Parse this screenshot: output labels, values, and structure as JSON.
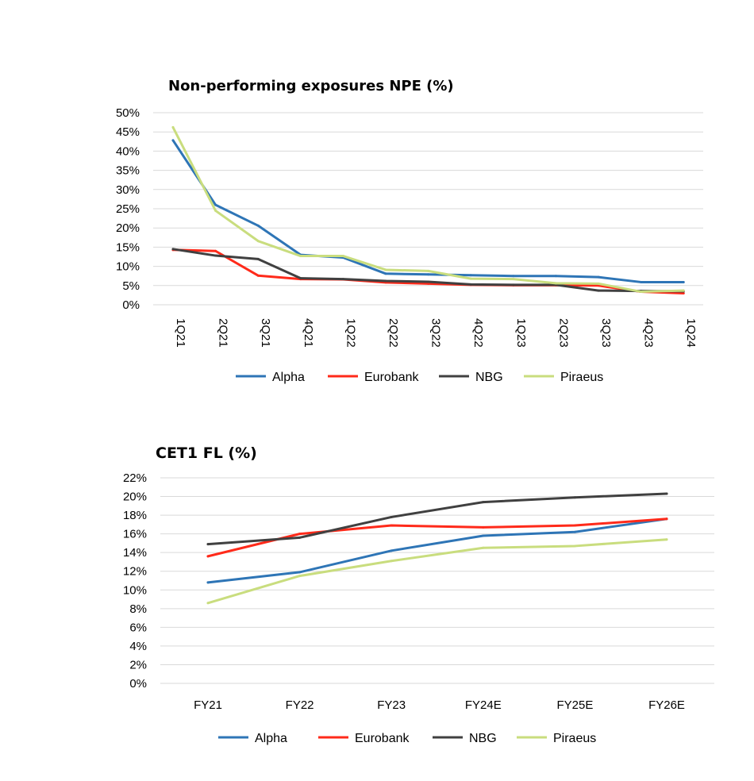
{
  "chart_data": [
    {
      "type": "line",
      "title": "Non-performing exposures NPE (%)",
      "xlabel": "",
      "ylabel": "",
      "categories": [
        "1Q21",
        "2Q21",
        "3Q21",
        "4Q21",
        "1Q22",
        "2Q22",
        "3Q22",
        "4Q22",
        "1Q23",
        "2Q23",
        "3Q23",
        "4Q23",
        "1Q24"
      ],
      "y_ticks": [
        "0%",
        "5%",
        "10%",
        "15%",
        "20%",
        "25%",
        "30%",
        "35%",
        "40%",
        "45%",
        "50%"
      ],
      "ylim": [
        0,
        50
      ],
      "grid": true,
      "legend_position": "bottom",
      "series": [
        {
          "name": "Alpha",
          "color": "#2e75b6",
          "values": [
            42.8,
            26.0,
            20.6,
            13.0,
            12.3,
            8.1,
            7.9,
            7.7,
            7.5,
            7.5,
            7.2,
            5.9,
            5.9
          ]
        },
        {
          "name": "Eurobank",
          "color": "#ff2a1a",
          "values": [
            14.3,
            14.0,
            7.6,
            6.7,
            6.6,
            5.8,
            5.5,
            5.2,
            5.1,
            5.1,
            5.0,
            3.4,
            3.0
          ]
        },
        {
          "name": "NBG",
          "color": "#404040",
          "values": [
            14.5,
            12.8,
            11.9,
            6.9,
            6.7,
            6.2,
            6.0,
            5.3,
            5.2,
            5.2,
            3.7,
            3.6,
            3.5
          ]
        },
        {
          "name": "Piraeus",
          "color": "#c9dd7e",
          "values": [
            46.2,
            24.5,
            16.6,
            12.7,
            12.7,
            9.1,
            8.8,
            6.8,
            6.7,
            5.6,
            5.5,
            3.4,
            3.7
          ]
        }
      ]
    },
    {
      "type": "line",
      "title": "CET1 FL (%)",
      "xlabel": "",
      "ylabel": "",
      "categories": [
        "FY21",
        "FY22",
        "FY23",
        "FY24E",
        "FY25E",
        "FY26E"
      ],
      "y_ticks": [
        "0%",
        "2%",
        "4%",
        "6%",
        "8%",
        "10%",
        "12%",
        "14%",
        "16%",
        "18%",
        "20%",
        "22%"
      ],
      "ylim": [
        0,
        22
      ],
      "grid": true,
      "legend_position": "bottom",
      "series": [
        {
          "name": "Alpha",
          "color": "#2e75b6",
          "values": [
            10.8,
            11.9,
            14.2,
            15.8,
            16.2,
            17.6
          ]
        },
        {
          "name": "Eurobank",
          "color": "#ff2a1a",
          "values": [
            13.6,
            16.0,
            16.9,
            16.7,
            16.9,
            17.6
          ]
        },
        {
          "name": "NBG",
          "color": "#404040",
          "values": [
            14.9,
            15.6,
            17.8,
            19.4,
            19.9,
            20.3
          ]
        },
        {
          "name": "Piraeus",
          "color": "#c9dd7e",
          "values": [
            8.6,
            11.5,
            13.1,
            14.5,
            14.7,
            15.4
          ]
        }
      ]
    }
  ]
}
